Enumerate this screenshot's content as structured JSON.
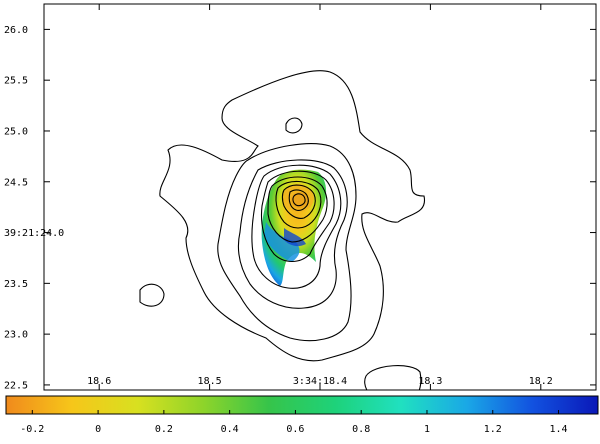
{
  "chart_data": {
    "type": "contour_map",
    "title": "",
    "x_ticks": [
      "18.6",
      "18.5",
      "3:34:18.4",
      "18.3",
      "18.2"
    ],
    "x_tick_values": [
      18.6,
      18.5,
      18.4,
      18.3,
      18.2
    ],
    "y_ticks": [
      "22.5",
      "23.0",
      "23.5",
      "39:21:24.0",
      "24.5",
      "25.0",
      "25.5",
      "26.0"
    ],
    "y_tick_values": [
      22.5,
      23.0,
      23.5,
      24.0,
      24.5,
      25.0,
      25.5,
      26.0
    ],
    "xlim": [
      18.65,
      18.15
    ],
    "ylim": [
      22.45,
      26.25
    ],
    "colorbar": {
      "ticks": [
        "-0.2",
        "0",
        "0.2",
        "0.4",
        "0.6",
        "0.8",
        "1",
        "1.2",
        "1.4"
      ],
      "tick_values": [
        -0.2,
        0,
        0.2,
        0.4,
        0.6,
        0.8,
        1.0,
        1.2,
        1.4
      ],
      "range": [
        -0.28,
        1.52
      ],
      "colors": [
        "#f08a1c",
        "#f6c61a",
        "#d8e020",
        "#8ed42a",
        "#36c44a",
        "#1ed27a",
        "#20e0c0",
        "#1aa8e6",
        "#1252e0",
        "#0a18b8"
      ]
    },
    "grid": false,
    "legend": "colorbar-bottom"
  }
}
